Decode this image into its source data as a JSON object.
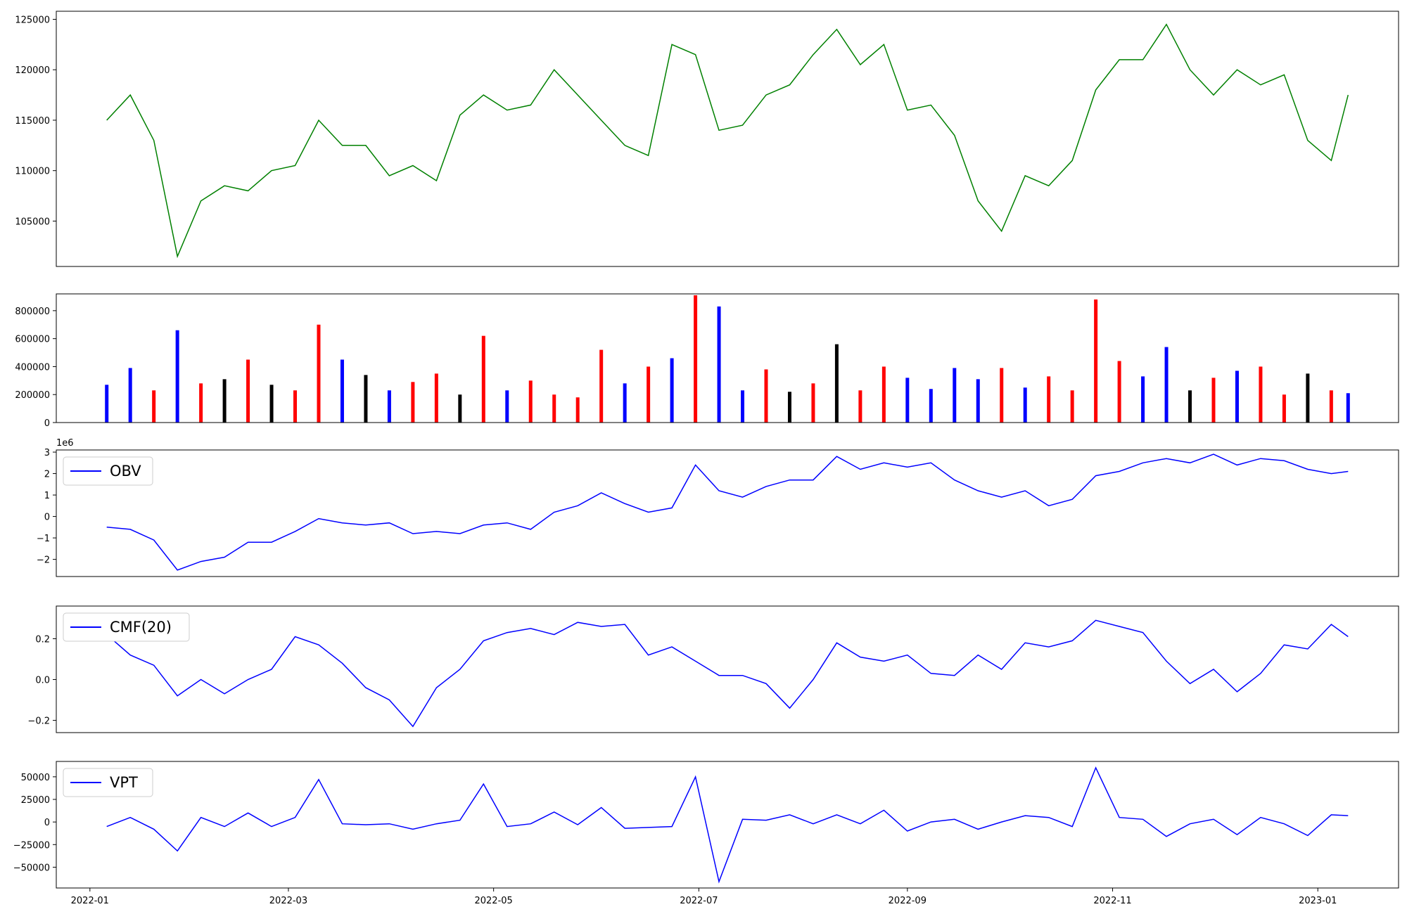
{
  "chart_data": [
    {
      "type": "line",
      "title": "",
      "xlabel": "",
      "ylabel": "",
      "color": "#008000",
      "yticks": [
        105000,
        110000,
        115000,
        120000,
        125000
      ],
      "ylim": [
        100500,
        125800
      ],
      "x": [
        "2022-01-06",
        "2022-01-13",
        "2022-01-20",
        "2022-01-27",
        "2022-02-03",
        "2022-02-10",
        "2022-02-17",
        "2022-02-24",
        "2022-03-03",
        "2022-03-10",
        "2022-03-17",
        "2022-03-24",
        "2022-03-31",
        "2022-04-07",
        "2022-04-14",
        "2022-04-21",
        "2022-04-28",
        "2022-05-05",
        "2022-05-12",
        "2022-05-19",
        "2022-05-26",
        "2022-06-02",
        "2022-06-09",
        "2022-06-16",
        "2022-06-23",
        "2022-06-30",
        "2022-07-07",
        "2022-07-14",
        "2022-07-21",
        "2022-07-28",
        "2022-08-04",
        "2022-08-11",
        "2022-08-18",
        "2022-08-25",
        "2022-09-01",
        "2022-09-08",
        "2022-09-15",
        "2022-09-22",
        "2022-09-29",
        "2022-10-06",
        "2022-10-13",
        "2022-10-20",
        "2022-10-27",
        "2022-11-03",
        "2022-11-10",
        "2022-11-17",
        "2022-11-24",
        "2022-12-01",
        "2022-12-08",
        "2022-12-15",
        "2022-12-22",
        "2022-12-29",
        "2023-01-05",
        "2023-01-10"
      ],
      "y": [
        115000,
        117500,
        113000,
        101500,
        107000,
        108500,
        108000,
        110000,
        110500,
        115000,
        112500,
        112500,
        109500,
        110500,
        109000,
        115500,
        117500,
        116000,
        116500,
        120000,
        117500,
        115000,
        112500,
        111500,
        122500,
        121500,
        114000,
        114500,
        117500,
        118500,
        121500,
        124000,
        120500,
        122500,
        116000,
        116500,
        113500,
        107000,
        104000,
        109500,
        108500,
        111000,
        118000,
        121000,
        121000,
        124500,
        120000,
        117500,
        120000,
        118500,
        119500,
        113000,
        111000,
        117500
      ]
    },
    {
      "type": "bar",
      "title": "",
      "xlabel": "",
      "ylabel": "",
      "yticks": [
        0,
        200000,
        400000,
        600000,
        800000
      ],
      "ylim": [
        0,
        920000
      ],
      "colors": [
        "blue",
        "red",
        "black"
      ],
      "x": [
        "2022-01-06",
        "2022-01-13",
        "2022-01-20",
        "2022-01-27",
        "2022-02-03",
        "2022-02-10",
        "2022-02-17",
        "2022-02-24",
        "2022-03-03",
        "2022-03-10",
        "2022-03-17",
        "2022-03-24",
        "2022-03-31",
        "2022-04-07",
        "2022-04-14",
        "2022-04-21",
        "2022-04-28",
        "2022-05-05",
        "2022-05-12",
        "2022-05-19",
        "2022-05-26",
        "2022-06-02",
        "2022-06-09",
        "2022-06-16",
        "2022-06-23",
        "2022-06-30",
        "2022-07-07",
        "2022-07-14",
        "2022-07-21",
        "2022-07-28",
        "2022-08-04",
        "2022-08-11",
        "2022-08-18",
        "2022-08-25",
        "2022-09-01",
        "2022-09-08",
        "2022-09-15",
        "2022-09-22",
        "2022-09-29",
        "2022-10-06",
        "2022-10-13",
        "2022-10-20",
        "2022-10-27",
        "2022-11-03",
        "2022-11-10",
        "2022-11-17",
        "2022-11-24",
        "2022-12-01",
        "2022-12-08",
        "2022-12-15",
        "2022-12-22",
        "2022-12-29",
        "2023-01-05",
        "2023-01-10"
      ],
      "values": [
        270000,
        390000,
        230000,
        660000,
        280000,
        310000,
        450000,
        270000,
        230000,
        700000,
        450000,
        340000,
        230000,
        290000,
        350000,
        200000,
        620000,
        230000,
        300000,
        200000,
        180000,
        520000,
        280000,
        400000,
        460000,
        910000,
        830000,
        230000,
        380000,
        220000,
        280000,
        560000,
        230000,
        400000,
        320000,
        240000,
        390000,
        310000,
        390000,
        250000,
        330000,
        230000,
        880000,
        440000,
        330000,
        540000,
        230000,
        320000,
        370000,
        400000,
        200000,
        350000,
        230000,
        210000
      ],
      "bar_colors": [
        "blue",
        "blue",
        "red",
        "blue",
        "red",
        "black",
        "red",
        "black",
        "red",
        "red",
        "blue",
        "black",
        "blue",
        "red",
        "red",
        "black",
        "red",
        "blue",
        "red",
        "red",
        "red",
        "red",
        "blue",
        "red",
        "blue",
        "red",
        "blue",
        "blue",
        "red",
        "black",
        "red",
        "black",
        "red",
        "red",
        "blue",
        "blue",
        "blue",
        "blue",
        "red",
        "blue",
        "red",
        "red",
        "red",
        "red",
        "blue",
        "blue",
        "black",
        "red",
        "blue",
        "red",
        "red",
        "black",
        "red",
        "blue"
      ]
    },
    {
      "type": "line",
      "title": "",
      "xlabel": "",
      "ylabel": "",
      "offset_text": "1e6",
      "legend": "OBV",
      "legend_loc": "upper-left",
      "color": "#0000ff",
      "yticks": [
        -2,
        -1,
        0,
        1,
        2,
        3
      ],
      "ylim": [
        -2.8,
        3.1
      ],
      "x": [
        "2022-01-06",
        "2022-01-13",
        "2022-01-20",
        "2022-01-27",
        "2022-02-03",
        "2022-02-10",
        "2022-02-17",
        "2022-02-24",
        "2022-03-03",
        "2022-03-10",
        "2022-03-17",
        "2022-03-24",
        "2022-03-31",
        "2022-04-07",
        "2022-04-14",
        "2022-04-21",
        "2022-04-28",
        "2022-05-05",
        "2022-05-12",
        "2022-05-19",
        "2022-05-26",
        "2022-06-02",
        "2022-06-09",
        "2022-06-16",
        "2022-06-23",
        "2022-06-30",
        "2022-07-07",
        "2022-07-14",
        "2022-07-21",
        "2022-07-28",
        "2022-08-04",
        "2022-08-11",
        "2022-08-18",
        "2022-08-25",
        "2022-09-01",
        "2022-09-08",
        "2022-09-15",
        "2022-09-22",
        "2022-09-29",
        "2022-10-06",
        "2022-10-13",
        "2022-10-20",
        "2022-10-27",
        "2022-11-03",
        "2022-11-10",
        "2022-11-17",
        "2022-11-24",
        "2022-12-01",
        "2022-12-08",
        "2022-12-15",
        "2022-12-22",
        "2022-12-29",
        "2023-01-05",
        "2023-01-10"
      ],
      "y": [
        -0.5,
        -0.6,
        -1.1,
        -2.5,
        -2.1,
        -1.9,
        -1.2,
        -1.2,
        -0.7,
        -0.1,
        -0.3,
        -0.4,
        -0.3,
        -0.8,
        -0.7,
        -0.8,
        -0.4,
        -0.3,
        -0.6,
        0.2,
        0.5,
        1.1,
        0.6,
        0.2,
        0.4,
        2.4,
        1.2,
        0.9,
        1.4,
        1.7,
        1.7,
        2.8,
        2.2,
        2.5,
        2.3,
        2.5,
        1.7,
        1.2,
        0.9,
        1.2,
        0.5,
        0.8,
        1.9,
        2.1,
        2.5,
        2.7,
        2.5,
        2.9,
        2.4,
        2.7,
        2.6,
        2.2,
        2.0,
        2.1
      ]
    },
    {
      "type": "line",
      "title": "",
      "xlabel": "",
      "ylabel": "",
      "legend": "CMF(20)",
      "legend_loc": "upper-left",
      "color": "#0000ff",
      "yticks": [
        -0.2,
        0.0,
        0.2
      ],
      "ylim": [
        -0.26,
        0.36
      ],
      "x": [
        "2022-01-06",
        "2022-01-13",
        "2022-01-20",
        "2022-01-27",
        "2022-02-03",
        "2022-02-10",
        "2022-02-17",
        "2022-02-24",
        "2022-03-03",
        "2022-03-10",
        "2022-03-17",
        "2022-03-24",
        "2022-03-31",
        "2022-04-07",
        "2022-04-14",
        "2022-04-21",
        "2022-04-28",
        "2022-05-05",
        "2022-05-12",
        "2022-05-19",
        "2022-05-26",
        "2022-06-02",
        "2022-06-09",
        "2022-06-16",
        "2022-06-23",
        "2022-06-30",
        "2022-07-07",
        "2022-07-14",
        "2022-07-21",
        "2022-07-28",
        "2022-08-04",
        "2022-08-11",
        "2022-08-18",
        "2022-08-25",
        "2022-09-01",
        "2022-09-08",
        "2022-09-15",
        "2022-09-22",
        "2022-09-29",
        "2022-10-06",
        "2022-10-13",
        "2022-10-20",
        "2022-10-27",
        "2022-11-03",
        "2022-11-10",
        "2022-11-17",
        "2022-11-24",
        "2022-12-01",
        "2022-12-08",
        "2022-12-15",
        "2022-12-22",
        "2022-12-29",
        "2023-01-05",
        "2023-01-10"
      ],
      "y": [
        0.22,
        0.12,
        0.07,
        -0.08,
        0.0,
        -0.07,
        0.0,
        0.05,
        0.21,
        0.17,
        0.08,
        -0.04,
        -0.1,
        -0.23,
        -0.04,
        0.05,
        0.19,
        0.23,
        0.25,
        0.22,
        0.28,
        0.26,
        0.27,
        0.12,
        0.16,
        0.09,
        0.02,
        0.02,
        -0.02,
        -0.14,
        0.0,
        0.18,
        0.11,
        0.09,
        0.12,
        0.03,
        0.02,
        0.12,
        0.05,
        0.18,
        0.16,
        0.19,
        0.29,
        0.26,
        0.23,
        0.09,
        -0.02,
        0.05,
        -0.06,
        0.03,
        0.17,
        0.15,
        0.27,
        0.21
      ]
    },
    {
      "type": "line",
      "title": "",
      "xlabel": "",
      "ylabel": "",
      "legend": "VPT",
      "legend_loc": "upper-left",
      "color": "#0000ff",
      "yticks": [
        -50000,
        -25000,
        0,
        25000,
        50000
      ],
      "xticks": [
        "2022-01",
        "2022-03",
        "2022-05",
        "2022-07",
        "2022-09",
        "2022-11",
        "2023-01"
      ],
      "ylim": [
        -73000,
        67000
      ],
      "x": [
        "2022-01-06",
        "2022-01-13",
        "2022-01-20",
        "2022-01-27",
        "2022-02-03",
        "2022-02-10",
        "2022-02-17",
        "2022-02-24",
        "2022-03-03",
        "2022-03-10",
        "2022-03-17",
        "2022-03-24",
        "2022-03-31",
        "2022-04-07",
        "2022-04-14",
        "2022-04-21",
        "2022-04-28",
        "2022-05-05",
        "2022-05-12",
        "2022-05-19",
        "2022-05-26",
        "2022-06-02",
        "2022-06-09",
        "2022-06-16",
        "2022-06-23",
        "2022-06-30",
        "2022-07-07",
        "2022-07-14",
        "2022-07-21",
        "2022-07-28",
        "2022-08-04",
        "2022-08-11",
        "2022-08-18",
        "2022-08-25",
        "2022-09-01",
        "2022-09-08",
        "2022-09-15",
        "2022-09-22",
        "2022-09-29",
        "2022-10-06",
        "2022-10-13",
        "2022-10-20",
        "2022-10-27",
        "2022-11-03",
        "2022-11-10",
        "2022-11-17",
        "2022-11-24",
        "2022-12-01",
        "2022-12-08",
        "2022-12-15",
        "2022-12-22",
        "2022-12-29",
        "2023-01-05",
        "2023-01-10"
      ],
      "y": [
        -5000,
        5000,
        -8000,
        -32000,
        5000,
        -5000,
        10000,
        -5000,
        5000,
        47000,
        -2000,
        -3000,
        -2000,
        -8000,
        -2000,
        2000,
        42000,
        -5000,
        -2000,
        11000,
        -3000,
        16000,
        -7000,
        -6000,
        -5000,
        50000,
        -66000,
        3000,
        2000,
        8000,
        -2000,
        8000,
        -2000,
        13000,
        -10000,
        0,
        3000,
        -8000,
        0,
        7000,
        5000,
        -5000,
        60000,
        5000,
        3000,
        -16000,
        -2000,
        3000,
        -14000,
        5000,
        -2000,
        -15000,
        8000,
        7000
      ]
    }
  ]
}
